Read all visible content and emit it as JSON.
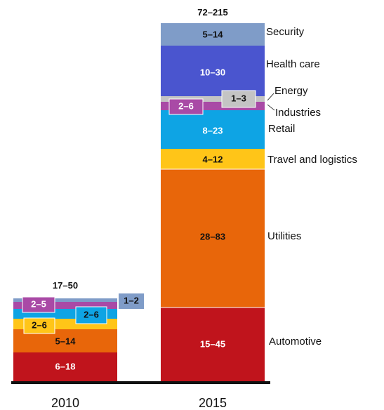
{
  "chart_data": {
    "type": "bar",
    "stacked": true,
    "categories": [
      "2010",
      "2015"
    ],
    "totals": [
      "17–50",
      "72–215"
    ],
    "series": [
      {
        "name": "Automotive",
        "color": "#c0141c",
        "ranges": [
          "6–18",
          "15–45"
        ],
        "low": [
          6,
          15
        ],
        "high": [
          18,
          45
        ]
      },
      {
        "name": "Utilities",
        "color": "#e8660a",
        "ranges": [
          "5–14",
          "28–83"
        ],
        "low": [
          5,
          28
        ],
        "high": [
          14,
          83
        ]
      },
      {
        "name": "Travel and logistics",
        "color": "#ffc518",
        "ranges": [
          "2–6",
          "4–12"
        ],
        "low": [
          2,
          4
        ],
        "high": [
          6,
          12
        ]
      },
      {
        "name": "Retail",
        "color": "#0ea4e4",
        "ranges": [
          "2–6",
          "8–23"
        ],
        "low": [
          2,
          8
        ],
        "high": [
          6,
          23
        ]
      },
      {
        "name": "Industries",
        "color": "#a94aa6",
        "ranges": [
          "2–5",
          "2–6"
        ],
        "low": [
          2,
          2
        ],
        "high": [
          5,
          6
        ]
      },
      {
        "name": "Energy",
        "color": "#c4c4c4",
        "ranges": [
          "",
          "1–3"
        ],
        "low": [
          0,
          1
        ],
        "high": [
          0,
          3
        ]
      },
      {
        "name": "Health care",
        "color": "#4a55cf",
        "ranges": [
          "",
          "10–30"
        ],
        "low": [
          0,
          10
        ],
        "high": [
          0,
          30
        ]
      },
      {
        "name": "Security",
        "color": "#7f9cc8",
        "ranges": [
          "1–2",
          "5–14"
        ],
        "low": [
          1,
          5
        ],
        "high": [
          2,
          14
        ]
      }
    ],
    "colors": {
      "automotive": "#c0141c",
      "utilities": "#e8660a",
      "travel": "#ffc518",
      "retail": "#0ea4e4",
      "industries": "#a94aa6",
      "energy": "#c4c4c4",
      "health": "#4a55cf",
      "security": "#7f9cc8",
      "baseline": "#111111"
    }
  }
}
